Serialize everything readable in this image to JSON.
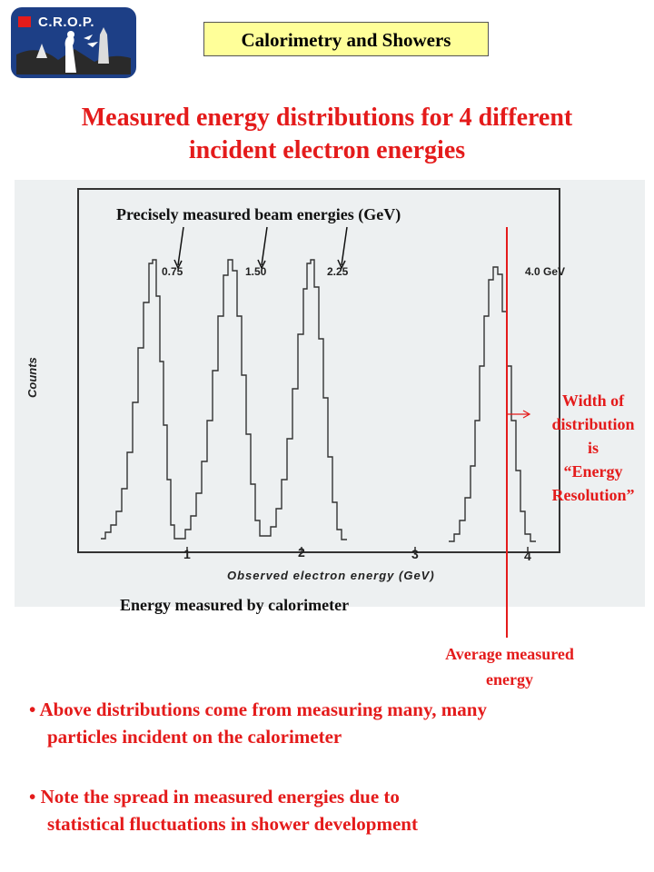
{
  "logo": {
    "text": "C.R.O.P."
  },
  "header": {
    "title": "Calorimetry and Showers"
  },
  "headline": {
    "line1": "Measured energy distributions for 4 different",
    "line2": "incident electron energies"
  },
  "figure": {
    "beam_label": "Precisely measured beam energies (GeV)",
    "peaks": [
      "0.75",
      "1.50",
      "2.25",
      "4.0 GeV"
    ],
    "y_axis_label": "Counts",
    "x_ticks": [
      "1",
      "2",
      "3",
      "4"
    ],
    "x_axis_label": "Observed electron energy (GeV)",
    "energy_label": "Energy measured by calorimeter"
  },
  "annotations": {
    "width_note": [
      "Width of",
      "distribution",
      "is",
      "“Energy",
      "Resolution”"
    ],
    "average_note": [
      "Average measured",
      "energy"
    ]
  },
  "bullets": [
    {
      "line1": "• Above distributions come from measuring many, many",
      "line2": "particles incident on the calorimeter"
    },
    {
      "line1": "• Note the spread in measured energies due to",
      "line2": "statistical fluctuations in shower development"
    }
  ],
  "colors": {
    "accent_red": "#e41b1b",
    "title_box": "#ffff99",
    "logo_blue": "#1d3f86"
  }
}
